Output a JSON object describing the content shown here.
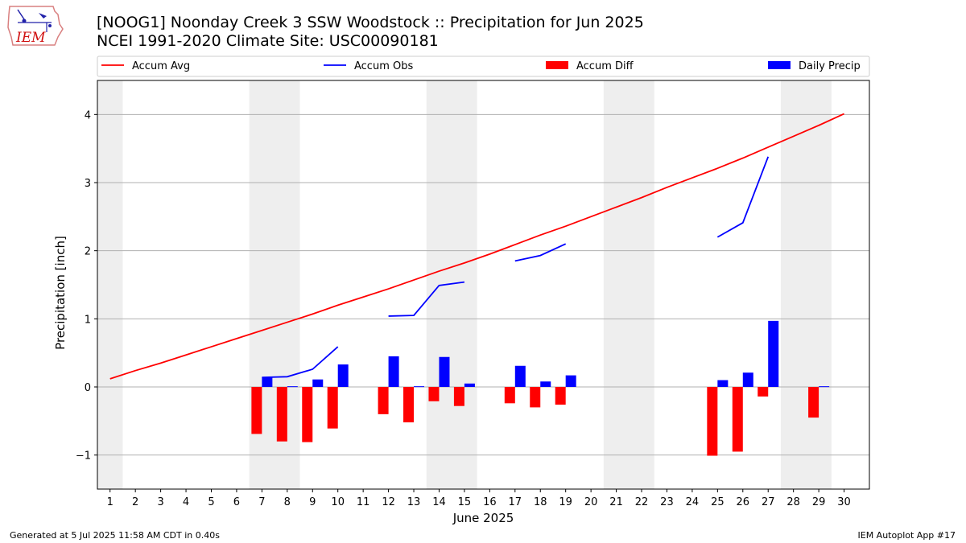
{
  "header": {
    "title_line1": "[NOOG1] Noonday Creek 3 SSW Woodstock :: Precipitation for Jun 2025",
    "title_line2": "NCEI 1991-2020 Climate Site: USC00090181"
  },
  "logo": {
    "text": "IEM"
  },
  "footer": {
    "generated": "Generated at 5 Jul 2025 11:58 AM CDT in 0.40s",
    "app": "IEM Autoplot App #17"
  },
  "colors": {
    "accum_avg": "#ff0000",
    "accum_obs": "#0000ff",
    "accum_diff": "#ff0000",
    "daily_precip": "#0000ff",
    "weekend_shade": "#eeeeee",
    "grid": "#b0b0b0"
  },
  "chart_data": {
    "type": "bar",
    "xlabel": "June 2025",
    "ylabel": "Precipitation [inch]",
    "ylim": [
      -1.5,
      4.5
    ],
    "xlim": [
      0.5,
      31.0
    ],
    "yticks": [
      -1,
      0,
      1,
      2,
      3,
      4
    ],
    "xticks": [
      1,
      2,
      3,
      4,
      5,
      6,
      7,
      8,
      9,
      10,
      11,
      12,
      13,
      14,
      15,
      16,
      17,
      18,
      19,
      20,
      21,
      22,
      23,
      24,
      25,
      26,
      27,
      28,
      29,
      30
    ],
    "grid": "horizontal",
    "legend_placement": "top",
    "weekend_shading": [
      [
        0.5,
        1.5
      ],
      [
        6.5,
        8.5
      ],
      [
        13.5,
        15.5
      ],
      [
        20.5,
        22.5
      ],
      [
        27.5,
        29.5
      ]
    ],
    "legend": [
      "Accum Avg",
      "Accum Obs",
      "Accum Diff",
      "Daily Precip"
    ],
    "series": [
      {
        "name": "Accum Avg",
        "kind": "line",
        "x": [
          1,
          2,
          3,
          4,
          5,
          6,
          7,
          8,
          9,
          10,
          11,
          12,
          13,
          14,
          15,
          16,
          17,
          18,
          19,
          20,
          21,
          22,
          23,
          24,
          25,
          26,
          27,
          28,
          29,
          30
        ],
        "values": [
          0.12,
          0.24,
          0.35,
          0.47,
          0.59,
          0.71,
          0.83,
          0.95,
          1.07,
          1.2,
          1.32,
          1.44,
          1.57,
          1.7,
          1.82,
          1.95,
          2.09,
          2.23,
          2.36,
          2.5,
          2.64,
          2.78,
          2.93,
          3.07,
          3.21,
          3.36,
          3.52,
          3.68,
          3.84,
          4.01
        ]
      },
      {
        "name": "Accum Obs",
        "kind": "line",
        "segments": [
          {
            "x": [
              7,
              8,
              9,
              10
            ],
            "values": [
              0.14,
              0.15,
              0.26,
              0.59
            ]
          },
          {
            "x": [
              12,
              13,
              14,
              15
            ],
            "values": [
              1.04,
              1.05,
              1.49,
              1.54
            ]
          },
          {
            "x": [
              17,
              18,
              19
            ],
            "values": [
              1.85,
              1.93,
              2.1
            ]
          },
          {
            "x": [
              25,
              26,
              27
            ],
            "values": [
              2.2,
              2.41,
              3.38
            ]
          }
        ]
      },
      {
        "name": "Accum Diff",
        "kind": "bar",
        "x": [
          7,
          8,
          9,
          10,
          12,
          13,
          14,
          15,
          17,
          18,
          19,
          25,
          26,
          27,
          29
        ],
        "values": [
          -0.69,
          -0.8,
          -0.81,
          -0.61,
          -0.4,
          -0.52,
          -0.21,
          -0.28,
          -0.24,
          -0.3,
          -0.26,
          -1.01,
          -0.95,
          -0.14,
          -0.45
        ]
      },
      {
        "name": "Daily Precip",
        "kind": "bar",
        "x": [
          7,
          8,
          9,
          10,
          12,
          13,
          14,
          15,
          17,
          18,
          19,
          25,
          26,
          27,
          29
        ],
        "values": [
          0.14,
          0.01,
          0.11,
          0.33,
          0.45,
          0.01,
          0.44,
          0.05,
          0.31,
          0.08,
          0.17,
          0.1,
          0.21,
          0.97,
          0.01
        ]
      }
    ]
  }
}
